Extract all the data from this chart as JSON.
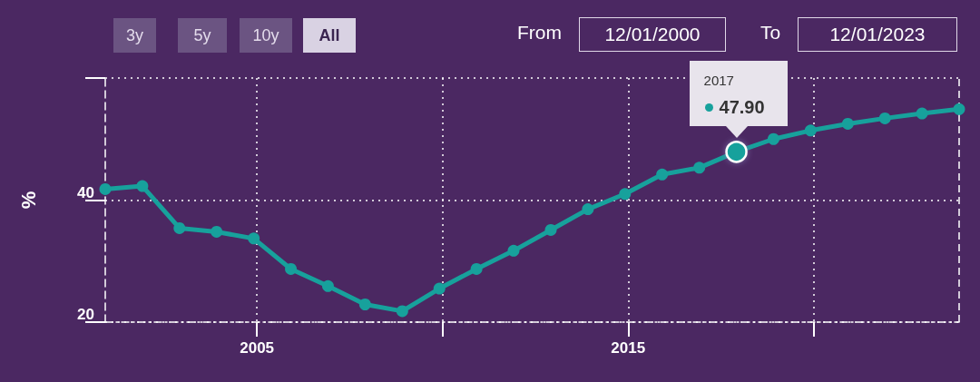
{
  "chart_data": {
    "type": "line",
    "ylabel": "%",
    "x": [
      "2000-12",
      "2001-12",
      "2002-12",
      "2003-12",
      "2004-12",
      "2005-12",
      "2006-12",
      "2007-12",
      "2008-12",
      "2009-12",
      "2010-12",
      "2011-12",
      "2012-12",
      "2013-12",
      "2014-12",
      "2015-12",
      "2016-12",
      "2017-12",
      "2018-12",
      "2019-12",
      "2020-12",
      "2021-12",
      "2022-12",
      "2023-12"
    ],
    "series": [
      {
        "color": "#17a19c",
        "values": [
          41.8,
          42.3,
          35.4,
          34.8,
          33.7,
          28.7,
          25.9,
          22.9,
          21.8,
          25.5,
          28.7,
          31.7,
          35.1,
          38.5,
          41.0,
          44.2,
          45.3,
          47.9,
          50.0,
          51.4,
          52.5,
          53.4,
          54.2,
          54.9
        ]
      }
    ],
    "xlim": [
      "2000-12",
      "2023-12"
    ],
    "xticks": [
      "2005",
      {
        "value": "2010",
        "label": null
      },
      "2015",
      {
        "value": "2020",
        "label": null
      }
    ],
    "ylim": [
      20,
      60
    ],
    "yticks": [
      20,
      40,
      {
        "value": 60,
        "label": null
      }
    ],
    "grid": true,
    "marker": "circle",
    "line_style": "solid",
    "annotations": [
      "2017",
      {
        "text": "47.90",
        "x": "2017-12",
        "y": 47.9
      },
      "3y",
      "5y",
      "10y",
      "All",
      "From",
      "12/01/2000",
      "To",
      "12/01/2023"
    ]
  }
}
